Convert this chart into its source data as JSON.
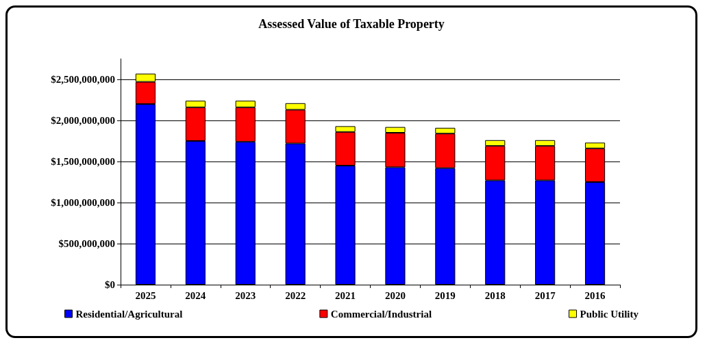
{
  "chart_data": {
    "type": "bar",
    "title": "Assessed Value of Taxable Property",
    "categories": [
      "2025",
      "2024",
      "2023",
      "2022",
      "2021",
      "2020",
      "2019",
      "2018",
      "2017",
      "2016"
    ],
    "stacked": true,
    "series": [
      {
        "name": "Residential/Agricultural",
        "color": "#0000ff",
        "values": [
          2200000000,
          1750000000,
          1740000000,
          1720000000,
          1450000000,
          1430000000,
          1420000000,
          1270000000,
          1270000000,
          1250000000
        ]
      },
      {
        "name": "Commercial/Industrial",
        "color": "#ff0000",
        "values": [
          270000000,
          410000000,
          420000000,
          410000000,
          410000000,
          420000000,
          420000000,
          420000000,
          420000000,
          410000000
        ]
      },
      {
        "name": "Public Utility",
        "color": "#ffff00",
        "values": [
          100000000,
          80000000,
          80000000,
          80000000,
          70000000,
          70000000,
          70000000,
          70000000,
          70000000,
          70000000
        ]
      }
    ],
    "ylim": [
      0,
      2750000000
    ],
    "yticks": [
      {
        "value": 0,
        "label": "$0"
      },
      {
        "value": 500000000,
        "label": "$500,000,000"
      },
      {
        "value": 1000000000,
        "label": "$1,000,000,000"
      },
      {
        "value": 1500000000,
        "label": "$1,500,000,000"
      },
      {
        "value": 2000000000,
        "label": "$2,000,000,000"
      },
      {
        "value": 2500000000,
        "label": "$2,500,000,000"
      }
    ],
    "grid": "y",
    "legend": "bottom"
  }
}
